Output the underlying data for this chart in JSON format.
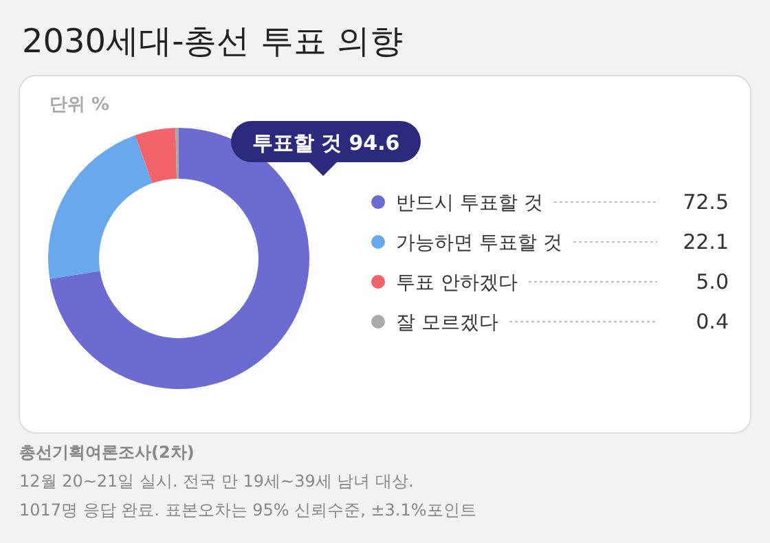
{
  "chart_data": {
    "type": "donut",
    "title": "2030세대-총선 투표 의향",
    "subtitle": "단위 %",
    "categories": [
      "반드시 투표할 것",
      "가능하면 투표할 것",
      "투표 안하겠다",
      "잘 모르겠다"
    ],
    "values": [
      72.5,
      22.1,
      5.0,
      0.4
    ],
    "value_labels": [
      "72.5",
      "22.1",
      "5.0",
      "0.4"
    ],
    "colors": [
      "#6b6bd1",
      "#6aa8ee",
      "#f2636b",
      "#aaaaaa"
    ],
    "legend": "right",
    "annotations": [
      "투표할 것 94.6",
      "총선기획여론조사(2차)",
      "12월 20~21일 실시. 전국 만 19세~39세 남녀 대상.",
      "1017명 응답 완료. 표본오차는 95% 신뢰수준, ±3.1%포인트"
    ]
  }
}
